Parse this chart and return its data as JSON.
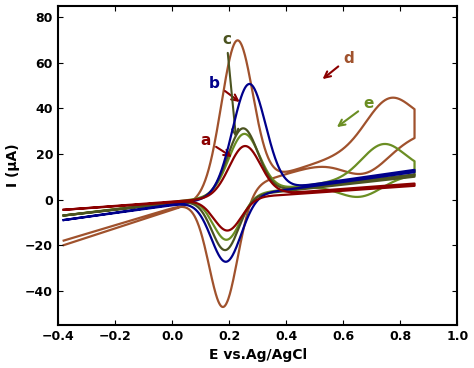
{
  "xlim": [
    -0.4,
    1.0
  ],
  "ylim": [
    -55,
    85
  ],
  "xlabel": "E vs.Ag/AgCl",
  "ylabel": "I (μA)",
  "xticks": [
    -0.4,
    -0.2,
    0.0,
    0.2,
    0.4,
    0.6,
    0.8,
    1.0
  ],
  "yticks": [
    -40,
    -20,
    0,
    20,
    40,
    60,
    80
  ],
  "curves": {
    "a": {
      "color": "#8B0000"
    },
    "b": {
      "color": "#00008B"
    },
    "c": {
      "color": "#4B5320"
    },
    "d": {
      "color": "#A0522D"
    },
    "e": {
      "color": "#6B8E23"
    }
  },
  "linewidth": 1.6,
  "background_color": "#ffffff"
}
